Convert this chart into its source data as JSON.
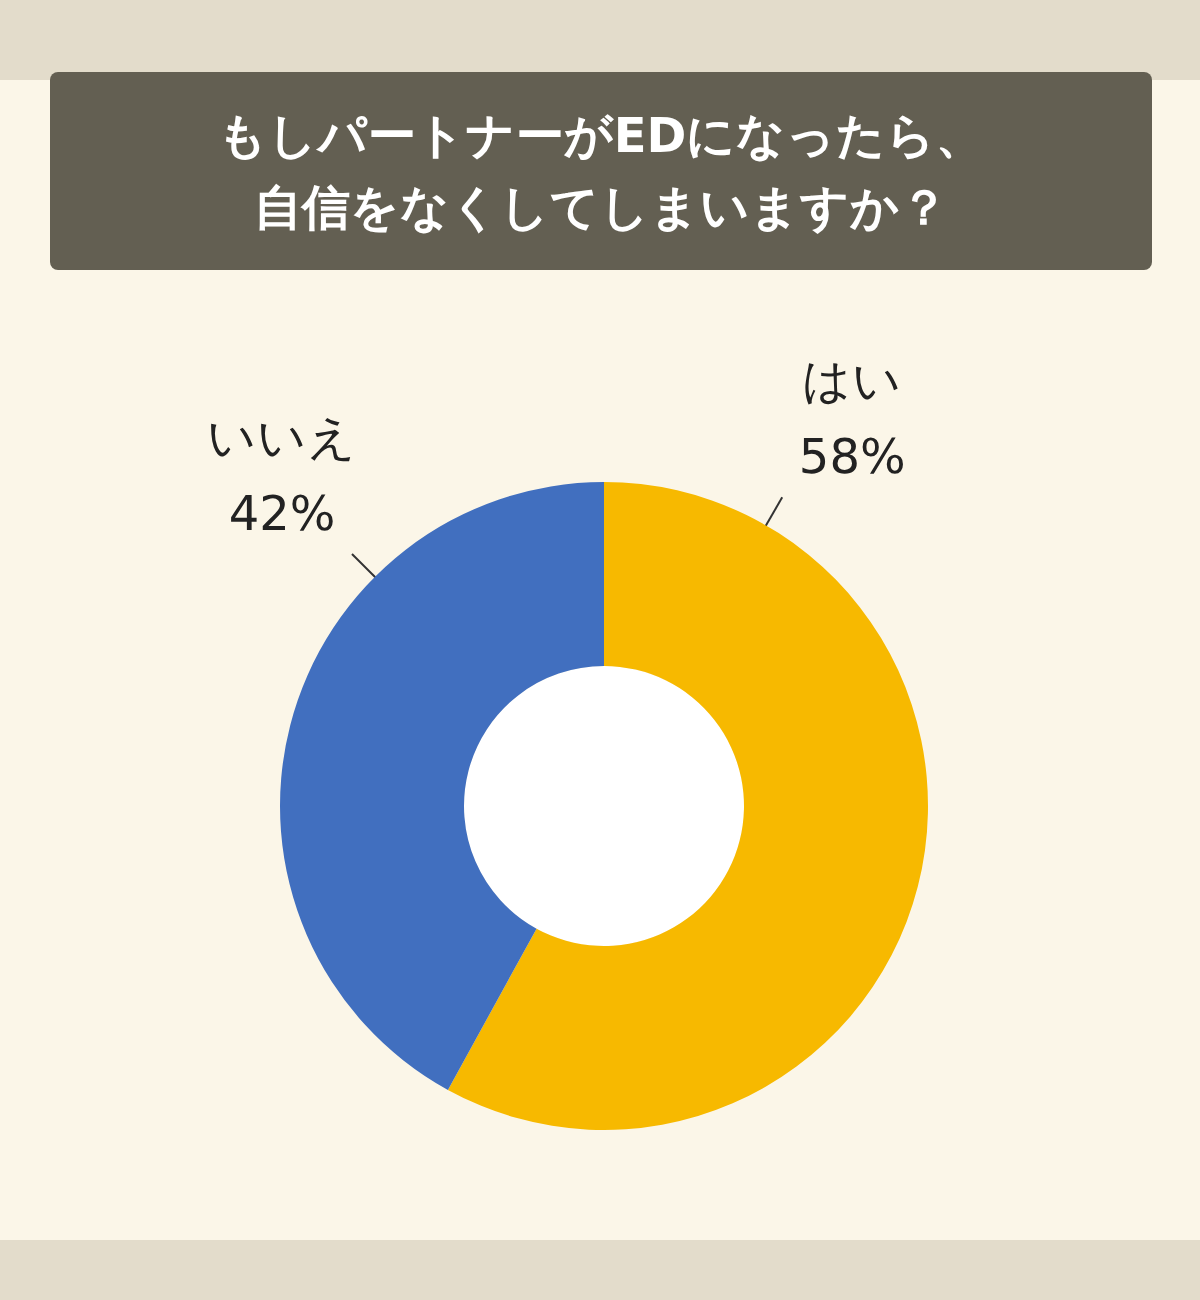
{
  "chart_data": {
    "type": "donut",
    "title": "もしパートナーがEDになったら、自信をなくしてしまいますか？",
    "categories": [
      "はい",
      "いいえ"
    ],
    "values": [
      58,
      42
    ],
    "value_labels": [
      "58%",
      "42%"
    ],
    "colors": [
      "#f7b900",
      "#416fbf"
    ],
    "legend": false
  }
}
